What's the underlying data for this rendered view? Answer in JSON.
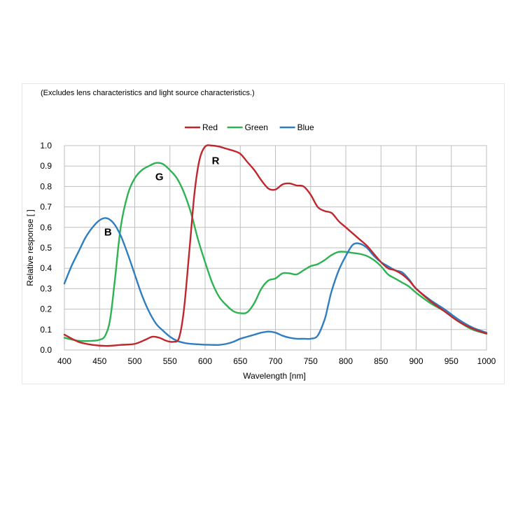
{
  "chart_data": {
    "type": "line",
    "note": "(Excludes lens characteristics and light source characteristics.)",
    "xlabel": "Wavelength [nm]",
    "ylabel": "Relative response [ ]",
    "xlim": [
      400,
      1000
    ],
    "ylim": [
      0,
      1.0
    ],
    "x_ticks": [
      "400",
      "450",
      "500",
      "550",
      "600",
      "650",
      "700",
      "750",
      "800",
      "850",
      "900",
      "950",
      "1000"
    ],
    "y_ticks": [
      "0.0",
      "0.1",
      "0.2",
      "0.3",
      "0.4",
      "0.5",
      "0.6",
      "0.7",
      "0.8",
      "0.9",
      "1.0"
    ],
    "grid": true,
    "legend_position": "top-center",
    "series": [
      {
        "name": "Red",
        "color": "#c0272d",
        "label": "R",
        "label_at": [
          615,
          0.91
        ],
        "x": [
          400,
          420,
          440,
          460,
          480,
          500,
          515,
          525,
          535,
          545,
          555,
          563,
          570,
          578,
          585,
          592,
          600,
          610,
          620,
          630,
          640,
          650,
          660,
          670,
          680,
          690,
          700,
          710,
          720,
          730,
          740,
          750,
          760,
          770,
          780,
          790,
          800,
          810,
          820,
          830,
          840,
          850,
          860,
          870,
          880,
          890,
          900,
          920,
          940,
          960,
          980,
          1000
        ],
        "y": [
          0.075,
          0.04,
          0.025,
          0.02,
          0.025,
          0.03,
          0.05,
          0.065,
          0.06,
          0.045,
          0.04,
          0.06,
          0.2,
          0.5,
          0.77,
          0.93,
          0.995,
          1.0,
          0.995,
          0.985,
          0.975,
          0.96,
          0.92,
          0.88,
          0.83,
          0.79,
          0.785,
          0.81,
          0.815,
          0.805,
          0.8,
          0.76,
          0.7,
          0.68,
          0.67,
          0.63,
          0.6,
          0.57,
          0.54,
          0.51,
          0.47,
          0.43,
          0.4,
          0.39,
          0.37,
          0.34,
          0.3,
          0.24,
          0.19,
          0.14,
          0.105,
          0.08
        ]
      },
      {
        "name": "Green",
        "color": "#2eb352",
        "label": "G",
        "label_at": [
          535,
          0.83
        ],
        "x": [
          400,
          420,
          440,
          450,
          458,
          465,
          472,
          480,
          490,
          500,
          510,
          520,
          530,
          540,
          550,
          560,
          570,
          580,
          590,
          600,
          610,
          620,
          630,
          640,
          650,
          660,
          670,
          680,
          690,
          700,
          710,
          720,
          730,
          740,
          750,
          760,
          770,
          780,
          790,
          800,
          810,
          820,
          830,
          840,
          850,
          860,
          870,
          880,
          890,
          900,
          920,
          940,
          960,
          980,
          1000
        ],
        "y": [
          0.06,
          0.045,
          0.045,
          0.05,
          0.07,
          0.15,
          0.35,
          0.6,
          0.76,
          0.84,
          0.88,
          0.9,
          0.915,
          0.91,
          0.88,
          0.84,
          0.77,
          0.67,
          0.54,
          0.43,
          0.33,
          0.26,
          0.22,
          0.19,
          0.18,
          0.185,
          0.23,
          0.3,
          0.34,
          0.35,
          0.375,
          0.375,
          0.37,
          0.39,
          0.41,
          0.42,
          0.44,
          0.465,
          0.48,
          0.48,
          0.475,
          0.47,
          0.46,
          0.44,
          0.41,
          0.37,
          0.35,
          0.33,
          0.31,
          0.28,
          0.23,
          0.19,
          0.14,
          0.1,
          0.08
        ]
      },
      {
        "name": "Blue",
        "color": "#2f7ec1",
        "label": "B",
        "label_at": [
          462,
          0.56
        ],
        "x": [
          400,
          410,
          420,
          430,
          440,
          450,
          460,
          470,
          480,
          490,
          500,
          510,
          520,
          530,
          540,
          550,
          560,
          570,
          580,
          590,
          600,
          610,
          620,
          630,
          640,
          650,
          660,
          670,
          680,
          690,
          700,
          710,
          720,
          730,
          740,
          750,
          760,
          770,
          775,
          780,
          790,
          800,
          810,
          820,
          830,
          840,
          850,
          860,
          870,
          880,
          890,
          900,
          920,
          940,
          960,
          980,
          1000
        ],
        "y": [
          0.325,
          0.41,
          0.48,
          0.55,
          0.6,
          0.635,
          0.645,
          0.62,
          0.56,
          0.47,
          0.37,
          0.27,
          0.19,
          0.13,
          0.095,
          0.065,
          0.045,
          0.035,
          0.03,
          0.028,
          0.026,
          0.025,
          0.025,
          0.03,
          0.04,
          0.055,
          0.065,
          0.075,
          0.085,
          0.09,
          0.085,
          0.07,
          0.06,
          0.055,
          0.055,
          0.055,
          0.07,
          0.15,
          0.22,
          0.29,
          0.39,
          0.46,
          0.515,
          0.52,
          0.5,
          0.46,
          0.43,
          0.41,
          0.39,
          0.38,
          0.345,
          0.3,
          0.245,
          0.2,
          0.15,
          0.11,
          0.085
        ]
      }
    ]
  }
}
